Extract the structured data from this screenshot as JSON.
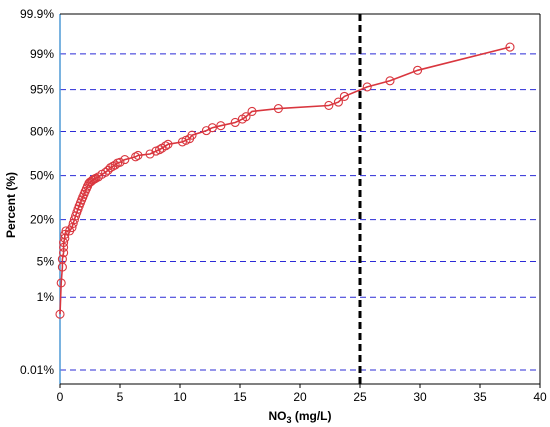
{
  "chart_data": {
    "type": "scatter",
    "title": "",
    "xlabel": "NO",
    "xlabel_sub": "3",
    "xlabel_unit": " (mg/L)",
    "ylabel": "Percent (%)",
    "xlim": [
      0,
      40
    ],
    "x_ticks": [
      0,
      5,
      10,
      15,
      20,
      25,
      30,
      35,
      40
    ],
    "y_scale": "probability",
    "y_ticks": [
      {
        "p": 0.01,
        "label": "0.01%"
      },
      {
        "p": 1,
        "label": "1%"
      },
      {
        "p": 5,
        "label": "5%"
      },
      {
        "p": 20,
        "label": "20%"
      },
      {
        "p": 50,
        "label": "50%"
      },
      {
        "p": 80,
        "label": "80%"
      },
      {
        "p": 95,
        "label": "95%"
      },
      {
        "p": 99,
        "label": "99%"
      },
      {
        "p": 99.9,
        "label": "99.9%"
      }
    ],
    "grid": "horizontal dashed",
    "threshold_x": 25,
    "colors": {
      "series": "#d9363e",
      "grid": "#2b2bd6",
      "threshold": "#000000",
      "left_axis": "#4f9ad6"
    },
    "series": [
      {
        "x": [
          0.0,
          0.1,
          0.2,
          0.2,
          0.3,
          0.3,
          0.3,
          0.4,
          0.4,
          0.5,
          0.8,
          1.0,
          1.1,
          1.2,
          1.3,
          1.4,
          1.5,
          1.6,
          1.7,
          1.8,
          1.9,
          2.0,
          2.1,
          2.2,
          2.3,
          2.4,
          2.5,
          2.6,
          2.7,
          2.8,
          2.9,
          3.0,
          3.2,
          3.5,
          3.8,
          4.0,
          4.2,
          4.4,
          4.6,
          4.8,
          5.0,
          5.4,
          6.3,
          6.5,
          7.5,
          8.0,
          8.3,
          8.5,
          8.8,
          9.0,
          10.2,
          10.5,
          10.8,
          11.0,
          12.2,
          12.7,
          13.4,
          14.6,
          15.2,
          15.5,
          16.0,
          18.2,
          22.4,
          23.2,
          23.7,
          25.6,
          27.5,
          29.8,
          37.5
        ],
        "y": [
          0.4,
          2.0,
          4.0,
          5.5,
          7.0,
          8.5,
          10.0,
          11.5,
          13.0,
          14.5,
          14.5,
          16.0,
          18.0,
          20.0,
          22.0,
          24.0,
          26.0,
          28.0,
          30.0,
          32.0,
          34.0,
          36.0,
          38.0,
          40.0,
          42.0,
          44.0,
          45.0,
          45.5,
          46.5,
          47.0,
          47.5,
          48.0,
          49.0,
          51.0,
          52.5,
          54.0,
          56.0,
          57.0,
          58.0,
          59.5,
          60.0,
          62.0,
          64.0,
          65.0,
          66.0,
          68.0,
          69.0,
          70.0,
          71.5,
          72.5,
          74.0,
          75.0,
          76.0,
          78.0,
          80.5,
          82.0,
          83.0,
          84.5,
          86.0,
          87.0,
          89.0,
          90.0,
          91.0,
          92.0,
          93.5,
          95.5,
          96.5,
          97.8,
          99.3
        ]
      }
    ]
  }
}
